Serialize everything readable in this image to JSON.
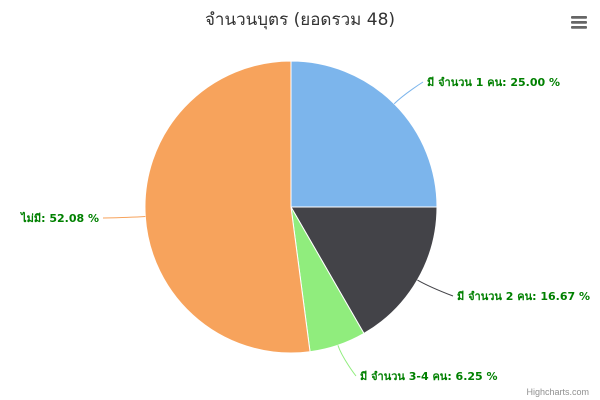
{
  "chart_data": {
    "type": "pie",
    "title": "จำนวนบุตร (ยอดรวม 48)",
    "series": [
      {
        "values": [
          {
            "name": "มี จำนวน 1 คน",
            "y": 25.0,
            "label": "มี จำนวน 1 คน: 25.00 %",
            "color": "#7cb5ec"
          },
          {
            "name": "มี จำนวน 2 คน",
            "y": 16.67,
            "label": "มี จำนวน 2 คน: 16.67 %",
            "color": "#434348"
          },
          {
            "name": "มี จำนวน 3-4 คน",
            "y": 6.25,
            "label": "มี จำนวน 3-4 คน: 6.25 %",
            "color": "#90ed7d"
          },
          {
            "name": "ไม่มี",
            "y": 52.08,
            "label": "ไม่มี: 52.08 %",
            "color": "#f7a35c"
          }
        ]
      }
    ],
    "label_color": "#008000",
    "legend": "none"
  },
  "credits": "Highcharts.com",
  "menu_icon": "hamburger-menu-icon"
}
